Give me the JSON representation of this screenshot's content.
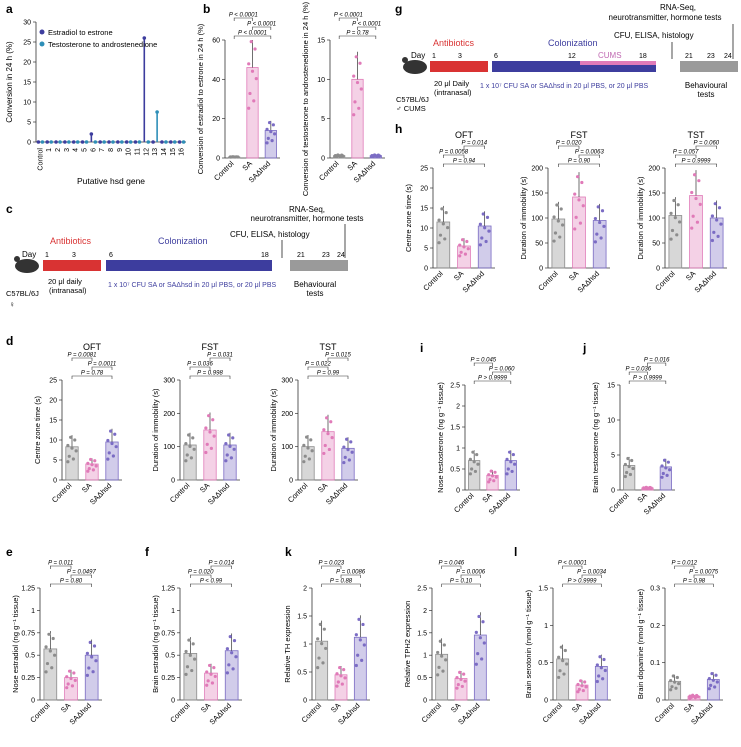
{
  "colors": {
    "control": "#8c8c8c",
    "sa": "#e07ab8",
    "sahsd": "#7b6cc4",
    "blue": "#3d3d9e",
    "cyan": "#2e8fb8",
    "red": "#d93333",
    "gray": "#9a9a9a",
    "text": "#222222"
  },
  "panel_labels": {
    "a": "a",
    "b": "b",
    "c": "c",
    "d": "d",
    "e": "e",
    "f": "f",
    "g": "g",
    "h": "h",
    "i": "i",
    "j": "j",
    "k": "k",
    "l": "l"
  },
  "groups": {
    "control": "Control",
    "sa": "SA",
    "sahsd": "SAΔhsd"
  },
  "timeline_c": {
    "day": "Day",
    "d1": "1",
    "d3": "3",
    "d6": "6",
    "d18": "18",
    "d21": "21",
    "d23": "23",
    "d24": "24",
    "antibiotics": "Antibiotics",
    "colonization": "Colonization",
    "rnaseq1": "RNA-Seq,",
    "rnaseq2": "neurotransmitter, hormone tests",
    "cfu": "CFU, ELISA, histology",
    "daily": "20 μl daily",
    "intranasal": "(intranasal)",
    "strain": "C57BL/6J",
    "sex": "♀",
    "behav1": "Behavioural",
    "behav2": "tests",
    "dose": "1 x 10⁷ CFU SA or SAΔhsd in 20 μl PBS, or 20 μl PBS"
  },
  "timeline_g": {
    "day": "Day",
    "d1": "1",
    "d3": "3",
    "d6": "6",
    "d12": "12",
    "d18": "18",
    "d21": "21",
    "d23": "23",
    "d24": "24",
    "antibiotics": "Antibiotics",
    "colonization": "Colonization",
    "cums": "CUMS",
    "rnaseq1": "RNA-Seq,",
    "rnaseq2": "neurotransmitter, hormone tests",
    "cfu": "CFU, ELISA, histology",
    "daily": "20 μl Daily",
    "intranasal": "(intranasal)",
    "strain": "C57BL/6J",
    "sex": "♂ CUMS",
    "behav1": "Behavioural",
    "behav2": "tests",
    "dose": "1 x 10⁷ CFU SA or SAΔhsd in 20 μl PBS, or 20 μl PBS"
  },
  "chart_data": [
    {
      "id": "a",
      "type": "scatter",
      "title": "",
      "ylabel": "Conversion in 24 h (%)",
      "xlabel": "Putative hsd gene",
      "categories": [
        "Control",
        "1",
        "2",
        "3",
        "4",
        "5",
        "6",
        "7",
        "8",
        "9",
        "10",
        "11",
        "12",
        "13",
        "14",
        "15",
        "16"
      ],
      "ylim": [
        0,
        30
      ],
      "yticks": [
        0,
        5,
        10,
        15,
        20,
        25,
        30
      ],
      "legend": [
        "Estradiol to estrone",
        "Testosterone to androstenedione"
      ],
      "series": [
        {
          "name": "Estradiol to estrone",
          "values": [
            0,
            0,
            0,
            0,
            0,
            0,
            2,
            0,
            0,
            0,
            0,
            0,
            26,
            0,
            0,
            0,
            0
          ]
        },
        {
          "name": "Testosterone to androstenedione",
          "values": [
            0,
            0,
            0,
            0,
            0,
            0,
            0,
            0,
            0,
            0,
            0,
            0,
            0,
            7.5,
            0,
            0,
            0
          ]
        }
      ]
    },
    {
      "id": "b1",
      "type": "bar",
      "ylabel": "Conversion of estradiol to estrone in 24 h (%)",
      "ylim": [
        0,
        60
      ],
      "yticks": [
        0,
        20,
        40,
        60
      ],
      "categories": [
        "Control",
        "SA",
        "SAΔhsd"
      ],
      "values": [
        0.5,
        46,
        14
      ],
      "brackets": [
        {
          "from": 0,
          "to": 2,
          "label": "P < 0.0001"
        },
        {
          "from": 1,
          "to": 2,
          "label": "P < 0.0001"
        },
        {
          "from": 0,
          "to": 1,
          "label": "P < 0.0001"
        }
      ]
    },
    {
      "id": "b2",
      "type": "bar",
      "ylabel": "Conversion of testosterone to androstenedione in 24 h (%)",
      "ylim": [
        0,
        15
      ],
      "yticks": [
        0,
        5,
        10,
        15
      ],
      "categories": [
        "Control",
        "SA",
        "SAΔhsd"
      ],
      "values": [
        0.3,
        10,
        0.3
      ],
      "brackets": [
        {
          "from": 0,
          "to": 2,
          "label": "P = 0.78"
        },
        {
          "from": 1,
          "to": 2,
          "label": "P < 0.0001"
        },
        {
          "from": 0,
          "to": 1,
          "label": "P < 0.0001"
        }
      ]
    },
    {
      "id": "d1",
      "type": "bar",
      "title": "OFT",
      "ylabel": "Centre zone time (s)",
      "ylim": [
        0,
        25
      ],
      "yticks": [
        0,
        5,
        10,
        15,
        20,
        25
      ],
      "categories": [
        "Control",
        "SA",
        "SAΔhsd"
      ],
      "values": [
        8.3,
        4,
        9.5
      ],
      "brackets": [
        {
          "from": 0,
          "to": 2,
          "label": "P = 0.78"
        },
        {
          "from": 1,
          "to": 2,
          "label": "P = 0.0011"
        },
        {
          "from": 0,
          "to": 1,
          "label": "P = 0.0081"
        }
      ]
    },
    {
      "id": "d2",
      "type": "bar",
      "title": "FST",
      "ylabel": "Duration of immobility (s)",
      "ylim": [
        0,
        300
      ],
      "yticks": [
        0,
        100,
        200,
        300
      ],
      "categories": [
        "Control",
        "SA",
        "SAΔhsd"
      ],
      "values": [
        105,
        150,
        105
      ],
      "brackets": [
        {
          "from": 0,
          "to": 2,
          "label": "P = 0.998"
        },
        {
          "from": 0,
          "to": 1,
          "label": "P = 0.036"
        },
        {
          "from": 1,
          "to": 2,
          "label": "P = 0.031"
        }
      ]
    },
    {
      "id": "d3",
      "type": "bar",
      "title": "TST",
      "ylabel": "Duration of immobility (s)",
      "ylim": [
        0,
        300
      ],
      "yticks": [
        0,
        100,
        200,
        300
      ],
      "categories": [
        "Control",
        "SA",
        "SAΔhsd"
      ],
      "values": [
        100,
        145,
        95
      ],
      "brackets": [
        {
          "from": 0,
          "to": 2,
          "label": "P = 0.99"
        },
        {
          "from": 0,
          "to": 1,
          "label": "P = 0.022"
        },
        {
          "from": 1,
          "to": 2,
          "label": "P = 0.015"
        }
      ]
    },
    {
      "id": "e",
      "type": "bar",
      "ylabel": "Nose estradiol (ng g⁻¹ tissue)",
      "ylim": [
        0,
        1.25
      ],
      "yticks": [
        0,
        0.25,
        0.5,
        0.75,
        1.0,
        1.25
      ],
      "categories": [
        "Control",
        "SA",
        "SAΔhsd"
      ],
      "values": [
        0.57,
        0.25,
        0.5
      ],
      "brackets": [
        {
          "from": 0,
          "to": 2,
          "label": "P = 0.80"
        },
        {
          "from": 1,
          "to": 2,
          "label": "P = 0.0497"
        },
        {
          "from": 0,
          "to": 1,
          "label": "P = 0.011"
        }
      ]
    },
    {
      "id": "f",
      "type": "bar",
      "ylabel": "Brain estradiol (ng g⁻¹ tissue)",
      "ylim": [
        0,
        1.25
      ],
      "yticks": [
        0,
        0.25,
        0.5,
        0.75,
        1.0,
        1.25
      ],
      "categories": [
        "Control",
        "SA",
        "SAΔhsd"
      ],
      "values": [
        0.52,
        0.3,
        0.55
      ],
      "brackets": [
        {
          "from": 0,
          "to": 2,
          "label": "P < 0.99"
        },
        {
          "from": 0,
          "to": 1,
          "label": "P = 0.020"
        },
        {
          "from": 1,
          "to": 2,
          "label": "P = 0.014"
        }
      ]
    },
    {
      "id": "h1",
      "type": "bar",
      "title": "OFT",
      "ylabel": "Centre zone time (s)",
      "ylim": [
        0,
        25
      ],
      "yticks": [
        0,
        5,
        10,
        15,
        20,
        25
      ],
      "categories": [
        "Control",
        "SA",
        "SAΔhsd"
      ],
      "values": [
        11.5,
        5.5,
        10.5
      ],
      "brackets": [
        {
          "from": 0,
          "to": 2,
          "label": "P = 0.94"
        },
        {
          "from": 0,
          "to": 1,
          "label": "P = 0.0058"
        },
        {
          "from": 1,
          "to": 2,
          "label": "P = 0.014"
        }
      ]
    },
    {
      "id": "h2",
      "type": "bar",
      "title": "FST",
      "ylabel": "Duration of immobility (s)",
      "ylim": [
        0,
        200
      ],
      "yticks": [
        0,
        50,
        100,
        150,
        200
      ],
      "categories": [
        "Control",
        "SA",
        "SAΔhsd"
      ],
      "values": [
        98,
        142,
        95
      ],
      "brackets": [
        {
          "from": 0,
          "to": 2,
          "label": "P = 0.90"
        },
        {
          "from": 1,
          "to": 2,
          "label": "P = 0.0063"
        },
        {
          "from": 0,
          "to": 1,
          "label": "P = 0.020"
        }
      ]
    },
    {
      "id": "h3",
      "type": "bar",
      "title": "TST",
      "ylabel": "Duration of immobility (s)",
      "ylim": [
        0,
        200
      ],
      "yticks": [
        0,
        50,
        100,
        150,
        200
      ],
      "categories": [
        "Control",
        "SA",
        "SAΔhsd"
      ],
      "values": [
        105,
        145,
        100
      ],
      "brackets": [
        {
          "from": 0,
          "to": 2,
          "label": "P = 0.9999"
        },
        {
          "from": 0,
          "to": 1,
          "label": "P = 0.057"
        },
        {
          "from": 1,
          "to": 2,
          "label": "P = 0.060"
        }
      ]
    },
    {
      "id": "i",
      "type": "bar",
      "ylabel": "Nose testosterone (ng g⁻¹ tissue)",
      "ylim": [
        0,
        2.5
      ],
      "yticks": [
        0,
        0.5,
        1.0,
        1.5,
        2.0,
        2.5
      ],
      "categories": [
        "Control",
        "SA",
        "SAΔhsd"
      ],
      "values": [
        0.7,
        0.35,
        0.7
      ],
      "brackets": [
        {
          "from": 0,
          "to": 2,
          "label": "P > 0.9999"
        },
        {
          "from": 1,
          "to": 2,
          "label": "P = 0.060"
        },
        {
          "from": 0,
          "to": 1,
          "label": "P = 0.045"
        }
      ]
    },
    {
      "id": "j",
      "type": "bar",
      "ylabel": "Brain testosterone (ng g⁻¹ tissue)",
      "ylim": [
        0,
        15
      ],
      "yticks": [
        0,
        5,
        10,
        15
      ],
      "categories": [
        "Control",
        "SA",
        "SAΔhsd"
      ],
      "values": [
        3.5,
        0.3,
        3.3
      ],
      "brackets": [
        {
          "from": 0,
          "to": 2,
          "label": "P > 0.9999"
        },
        {
          "from": 0,
          "to": 1,
          "label": "P = 0.036"
        },
        {
          "from": 1,
          "to": 2,
          "label": "P = 0.016"
        }
      ]
    },
    {
      "id": "k",
      "type": "bar",
      "ylabel": "Relative TH expression",
      "ylim": [
        0,
        2.0
      ],
      "yticks": [
        0,
        0.5,
        1.0,
        1.5,
        2.0
      ],
      "categories": [
        "Control",
        "SA",
        "SAΔhsd"
      ],
      "values": [
        1.05,
        0.45,
        1.12
      ],
      "brackets": [
        {
          "from": 0,
          "to": 2,
          "label": "P = 0.88"
        },
        {
          "from": 1,
          "to": 2,
          "label": "P = 0.0086"
        },
        {
          "from": 0,
          "to": 1,
          "label": "P = 0.023"
        }
      ]
    },
    {
      "id": "k2",
      "type": "bar",
      "ylabel": "Relative TPH2 expression",
      "ylim": [
        0,
        2.5
      ],
      "yticks": [
        0,
        0.5,
        1.0,
        1.5,
        2.0,
        2.5
      ],
      "categories": [
        "Control",
        "SA",
        "SAΔhsd"
      ],
      "values": [
        1.02,
        0.48,
        1.45
      ],
      "brackets": [
        {
          "from": 0,
          "to": 2,
          "label": "P = 0.10"
        },
        {
          "from": 1,
          "to": 2,
          "label": "P = 0.0006"
        },
        {
          "from": 0,
          "to": 1,
          "label": "P = 0.046"
        }
      ]
    },
    {
      "id": "l1",
      "type": "bar",
      "ylabel": "Brain serotonin (nmol g⁻¹ tissue)",
      "ylim": [
        0,
        1.5
      ],
      "yticks": [
        0,
        0.5,
        1.0,
        1.5
      ],
      "categories": [
        "Control",
        "SA",
        "SAΔhsd"
      ],
      "values": [
        0.55,
        0.2,
        0.45
      ],
      "brackets": [
        {
          "from": 0,
          "to": 2,
          "label": "P > 0.9999"
        },
        {
          "from": 1,
          "to": 2,
          "label": "P = 0.0034"
        },
        {
          "from": 0,
          "to": 1,
          "label": "P < 0.0001"
        }
      ]
    },
    {
      "id": "l2",
      "type": "bar",
      "ylabel": "Brain dopamine (nmol g⁻¹ tissue)",
      "ylim": [
        0,
        0.3
      ],
      "yticks": [
        0,
        0.1,
        0.2,
        0.3
      ],
      "categories": [
        "Control",
        "SA",
        "SAΔhsd"
      ],
      "values": [
        0.05,
        0.01,
        0.055
      ],
      "brackets": [
        {
          "from": 0,
          "to": 2,
          "label": "P = 0.98"
        },
        {
          "from": 1,
          "to": 2,
          "label": "P = 0.0075"
        },
        {
          "from": 0,
          "to": 1,
          "label": "P = 0.012"
        }
      ]
    }
  ]
}
